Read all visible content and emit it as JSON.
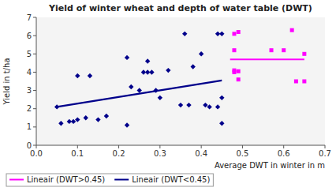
{
  "chart_data": {
    "type": "scatter",
    "title": "Yield of winter wheat and depth of water table (DWT)",
    "x_label": "Average DWT in winter in m",
    "y_label": "Yield in t/ha",
    "xlim": [
      0,
      0.7
    ],
    "ylim": [
      0,
      7
    ],
    "xticks": [
      {
        "value": 0,
        "label": "0.0"
      },
      0.1,
      0.2,
      0.3,
      0.4,
      0.5,
      0.6,
      0.7
    ],
    "yticks": [
      0,
      1,
      2,
      3,
      4,
      5,
      6,
      7
    ],
    "grid": false,
    "series": [
      {
        "type": "scatter",
        "marker": "diamond",
        "color": "#00008B",
        "x": [
          0.05,
          0.06,
          0.08,
          0.09,
          0.1,
          0.1,
          0.12,
          0.13,
          0.15,
          0.17,
          0.22,
          0.22,
          0.23,
          0.25,
          0.26,
          0.27,
          0.27,
          0.28,
          0.29,
          0.3,
          0.32,
          0.35,
          0.36,
          0.37,
          0.38,
          0.4,
          0.41,
          0.42,
          0.44,
          0.44,
          0.45,
          0.45,
          0.45
        ],
        "values": [
          2.1,
          1.2,
          1.3,
          1.3,
          1.4,
          3.8,
          1.5,
          3.8,
          1.4,
          1.6,
          4.8,
          1.1,
          3.2,
          3.0,
          4.0,
          4.0,
          4.6,
          4.0,
          3.0,
          2.6,
          4.1,
          2.2,
          6.1,
          2.2,
          4.3,
          5.0,
          2.2,
          2.1,
          2.1,
          6.1,
          6.1,
          1.2,
          2.6
        ]
      },
      {
        "type": "scatter",
        "marker": "square",
        "color": "#FF00FF",
        "x": [
          0.48,
          0.48,
          0.48,
          0.48,
          0.49,
          0.49,
          0.49,
          0.57,
          0.6,
          0.62,
          0.63,
          0.65,
          0.65
        ],
        "values": [
          4.0,
          4.1,
          5.2,
          6.1,
          3.6,
          4.05,
          6.2,
          5.2,
          5.2,
          6.3,
          3.5,
          3.5,
          5.0
        ]
      },
      {
        "type": "line",
        "line_style": "solid",
        "name": "Lineair (DWT>0.45)",
        "color": "#FF00FF",
        "x": [
          0.47,
          0.65
        ],
        "values": [
          4.7,
          4.7
        ]
      },
      {
        "type": "line",
        "line_style": "solid",
        "name": "Lineair (DWT<0.45)",
        "color": "#00008B",
        "x": [
          0.05,
          0.45
        ],
        "values": [
          2.1,
          3.55
        ]
      }
    ]
  }
}
